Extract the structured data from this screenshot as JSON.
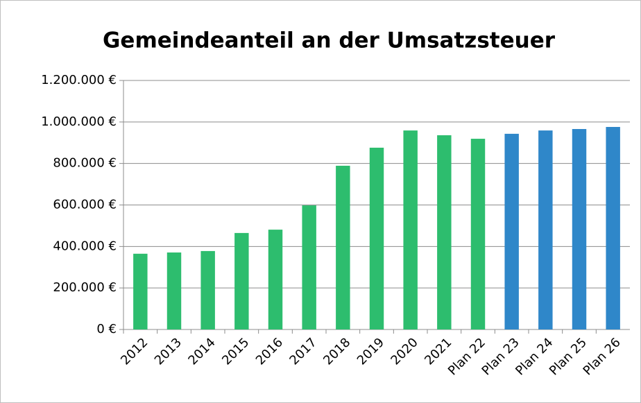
{
  "chart_data": {
    "type": "bar",
    "title": "Gemeindeanteil an der Umsatzsteuer",
    "categories": [
      "2012",
      "2013",
      "2014",
      "2015",
      "2016",
      "2017",
      "2018",
      "2019",
      "2020",
      "2021",
      "Plan 22",
      "Plan 23",
      "Plan 24",
      "Plan 25",
      "Plan 26"
    ],
    "values": [
      365000,
      371000,
      378000,
      465000,
      481000,
      598000,
      789000,
      876000,
      959000,
      936000,
      919000,
      943000,
      959000,
      966000,
      976000
    ],
    "colors": [
      "#2dbd6e",
      "#2dbd6e",
      "#2dbd6e",
      "#2dbd6e",
      "#2dbd6e",
      "#2dbd6e",
      "#2dbd6e",
      "#2dbd6e",
      "#2dbd6e",
      "#2dbd6e",
      "#2dbd6e",
      "#2f87c9",
      "#2f87c9",
      "#2f87c9",
      "#2f87c9"
    ],
    "ylim": [
      0,
      1200000
    ],
    "yticks": [
      {
        "value": 0,
        "label": "0 €"
      },
      {
        "value": 200000,
        "label": "200.000 €"
      },
      {
        "value": 400000,
        "label": "400.000 €"
      },
      {
        "value": 600000,
        "label": "600.000 €"
      },
      {
        "value": 800000,
        "label": "800.000 €"
      },
      {
        "value": 1000000,
        "label": "1.000.000 €"
      },
      {
        "value": 1200000,
        "label": "1.200.000 €"
      }
    ],
    "grid": true
  }
}
